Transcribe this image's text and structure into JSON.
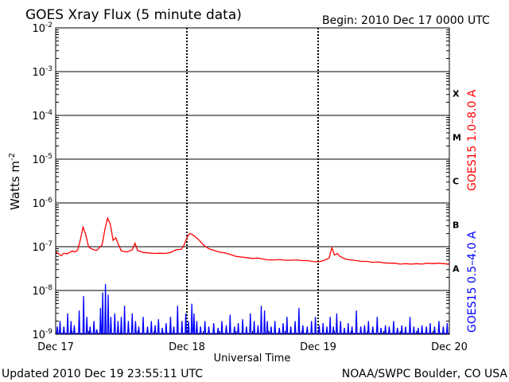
{
  "chart_data": {
    "type": "line",
    "title": "GOES Xray Flux (5 minute data)",
    "begin_label": "Begin:  2010 Dec 17 0000 UTC",
    "xlabel": "Universal Time",
    "ylabel_text": "Watts m",
    "ylabel_sup": "-2",
    "y_scale": "log",
    "ylim": [
      1e-09,
      0.01
    ],
    "y_ticks": [
      {
        "value": 1e-09,
        "base": "10",
        "exp": "-9"
      },
      {
        "value": 1e-08,
        "base": "10",
        "exp": "-8"
      },
      {
        "value": 1e-07,
        "base": "10",
        "exp": "-7"
      },
      {
        "value": 1e-06,
        "base": "10",
        "exp": "-6"
      },
      {
        "value": 1e-05,
        "base": "10",
        "exp": "-5"
      },
      {
        "value": 0.0001,
        "base": "10",
        "exp": "-4"
      },
      {
        "value": 0.001,
        "base": "10",
        "exp": "-3"
      },
      {
        "value": 0.01,
        "base": "10",
        "exp": "-2"
      }
    ],
    "xlim": [
      0,
      72
    ],
    "x_ticks": [
      {
        "hour": 0,
        "label": "Dec 17"
      },
      {
        "hour": 24,
        "label": "Dec 18"
      },
      {
        "hour": 48,
        "label": "Dec 19"
      },
      {
        "hour": 72,
        "label": "Dec 20"
      }
    ],
    "flare_classes": [
      {
        "label": "X",
        "value": 0.000316
      },
      {
        "label": "M",
        "value": 3.16e-05
      },
      {
        "label": "C",
        "value": 3.16e-06
      },
      {
        "label": "B",
        "value": 3.16e-07
      },
      {
        "label": "A",
        "value": 3.16e-08
      }
    ],
    "series": [
      {
        "name": "GOES15 1.0–8.0 A",
        "color": "#ff0000",
        "points": [
          [
            0.0,
            7.6e-08
          ],
          [
            0.5,
            7e-08
          ],
          [
            1.0,
            6.2e-08
          ],
          [
            1.5,
            7.1e-08
          ],
          [
            2.0,
            6.9e-08
          ],
          [
            2.5,
            7.3e-08
          ],
          [
            3.0,
            8e-08
          ],
          [
            3.5,
            7.6e-08
          ],
          [
            4.0,
            8.3e-08
          ],
          [
            4.5,
            1.4e-07
          ],
          [
            5.0,
            2.8e-07
          ],
          [
            5.5,
            1.9e-07
          ],
          [
            6.0,
            1e-07
          ],
          [
            6.5,
            9e-08
          ],
          [
            7.0,
            8.5e-08
          ],
          [
            7.5,
            8.2e-08
          ],
          [
            8.0,
            9.5e-08
          ],
          [
            8.5,
            1.1e-07
          ],
          [
            9.0,
            2.5e-07
          ],
          [
            9.5,
            4.5e-07
          ],
          [
            10.0,
            3.2e-07
          ],
          [
            10.5,
            1.4e-07
          ],
          [
            11.0,
            1.6e-07
          ],
          [
            11.5,
            1.1e-07
          ],
          [
            12.0,
            8e-08
          ],
          [
            13.0,
            7.6e-08
          ],
          [
            14.0,
            8.5e-08
          ],
          [
            14.5,
            1.2e-07
          ],
          [
            15.0,
            8.2e-08
          ],
          [
            16.0,
            7.4e-08
          ],
          [
            17.0,
            7.2e-08
          ],
          [
            18.0,
            7e-08
          ],
          [
            19.0,
            7.1e-08
          ],
          [
            20.0,
            7e-08
          ],
          [
            21.0,
            7.4e-08
          ],
          [
            22.0,
            8.5e-08
          ],
          [
            23.0,
            8.8e-08
          ],
          [
            23.5,
            1.1e-07
          ],
          [
            24.0,
            1.6e-07
          ],
          [
            24.5,
            2e-07
          ],
          [
            25.0,
            1.9e-07
          ],
          [
            25.5,
            1.7e-07
          ],
          [
            26.0,
            1.5e-07
          ],
          [
            26.5,
            1.3e-07
          ],
          [
            27.0,
            1.1e-07
          ],
          [
            28.0,
            9e-08
          ],
          [
            29.0,
            8.2e-08
          ],
          [
            30.0,
            7.5e-08
          ],
          [
            31.0,
            7.2e-08
          ],
          [
            32.0,
            6.6e-08
          ],
          [
            33.0,
            6e-08
          ],
          [
            34.0,
            5.8e-08
          ],
          [
            35.0,
            5.6e-08
          ],
          [
            36.0,
            5.4e-08
          ],
          [
            37.0,
            5.5e-08
          ],
          [
            38.0,
            5.2e-08
          ],
          [
            39.0,
            5e-08
          ],
          [
            40.0,
            5e-08
          ],
          [
            41.0,
            5.1e-08
          ],
          [
            42.0,
            4.9e-08
          ],
          [
            43.0,
            4.9e-08
          ],
          [
            44.0,
            5e-08
          ],
          [
            45.0,
            4.8e-08
          ],
          [
            46.0,
            4.8e-08
          ],
          [
            47.0,
            4.6e-08
          ],
          [
            48.0,
            4.5e-08
          ],
          [
            49.0,
            4.8e-08
          ],
          [
            50.0,
            5.5e-08
          ],
          [
            50.5,
            9.5e-08
          ],
          [
            51.0,
            6.5e-08
          ],
          [
            51.5,
            7e-08
          ],
          [
            52.0,
            6e-08
          ],
          [
            53.0,
            5.2e-08
          ],
          [
            54.0,
            5e-08
          ],
          [
            55.0,
            4.8e-08
          ],
          [
            56.0,
            4.6e-08
          ],
          [
            57.0,
            4.6e-08
          ],
          [
            58.0,
            4.4e-08
          ],
          [
            59.0,
            4.5e-08
          ],
          [
            60.0,
            4.3e-08
          ],
          [
            61.0,
            4.2e-08
          ],
          [
            62.0,
            4.2e-08
          ],
          [
            63.0,
            4e-08
          ],
          [
            64.0,
            4.1e-08
          ],
          [
            65.0,
            4e-08
          ],
          [
            66.0,
            4.1e-08
          ],
          [
            67.0,
            4e-08
          ],
          [
            68.0,
            4.2e-08
          ],
          [
            69.0,
            4.1e-08
          ],
          [
            70.0,
            4.2e-08
          ],
          [
            71.0,
            4.1e-08
          ],
          [
            72.0,
            4e-08
          ]
        ]
      },
      {
        "name": "GOES15 0.5–4.0 A",
        "color": "#0000ff",
        "baseline": 1e-09,
        "spikes": [
          [
            0.3,
            1.5e-09
          ],
          [
            0.8,
            2e-09
          ],
          [
            1.5,
            1.5e-09
          ],
          [
            2.2,
            3e-09
          ],
          [
            2.8,
            2e-09
          ],
          [
            3.4,
            1.6e-09
          ],
          [
            4.3,
            3.5e-09
          ],
          [
            5.1,
            7.5e-09
          ],
          [
            5.7,
            2.5e-09
          ],
          [
            6.3,
            1.5e-09
          ],
          [
            7.0,
            2e-09
          ],
          [
            7.5,
            1.3e-09
          ],
          [
            8.2,
            4e-09
          ],
          [
            8.6,
            9e-09
          ],
          [
            9.1,
            1.4e-08
          ],
          [
            9.6,
            8e-09
          ],
          [
            10.1,
            2.5e-09
          ],
          [
            10.8,
            3e-09
          ],
          [
            11.4,
            2e-09
          ],
          [
            12.0,
            2.5e-09
          ],
          [
            12.6,
            4.5e-09
          ],
          [
            13.3,
            2e-09
          ],
          [
            14.0,
            3e-09
          ],
          [
            14.6,
            2e-09
          ],
          [
            15.2,
            1.5e-09
          ],
          [
            16.0,
            2.5e-09
          ],
          [
            16.8,
            1.5e-09
          ],
          [
            17.5,
            2e-09
          ],
          [
            18.2,
            1.6e-09
          ],
          [
            18.8,
            2.2e-09
          ],
          [
            19.5,
            1.4e-09
          ],
          [
            20.2,
            1.8e-09
          ],
          [
            21.0,
            2.5e-09
          ],
          [
            21.6,
            1.5e-09
          ],
          [
            22.3,
            4.5e-09
          ],
          [
            23.1,
            2e-09
          ],
          [
            23.8,
            3e-09
          ],
          [
            24.3,
            2e-09
          ],
          [
            24.9,
            5e-09
          ],
          [
            25.3,
            3e-09
          ],
          [
            25.8,
            2e-09
          ],
          [
            26.5,
            1.5e-09
          ],
          [
            27.3,
            2e-09
          ],
          [
            28.0,
            1.5e-09
          ],
          [
            28.9,
            1.8e-09
          ],
          [
            29.7,
            1.4e-09
          ],
          [
            30.4,
            2e-09
          ],
          [
            31.2,
            1.6e-09
          ],
          [
            31.9,
            2.8e-09
          ],
          [
            32.7,
            1.5e-09
          ],
          [
            33.4,
            1.8e-09
          ],
          [
            34.2,
            2.2e-09
          ],
          [
            34.9,
            1.5e-09
          ],
          [
            35.6,
            3e-09
          ],
          [
            36.3,
            2e-09
          ],
          [
            37.0,
            1.6e-09
          ],
          [
            37.6,
            4.5e-09
          ],
          [
            38.2,
            3.5e-09
          ],
          [
            38.7,
            2e-09
          ],
          [
            39.4,
            1.5e-09
          ],
          [
            40.1,
            2e-09
          ],
          [
            40.9,
            1.4e-09
          ],
          [
            41.6,
            1.8e-09
          ],
          [
            42.3,
            2.5e-09
          ],
          [
            43.0,
            1.5e-09
          ],
          [
            43.8,
            2e-09
          ],
          [
            44.5,
            4e-09
          ],
          [
            45.2,
            1.6e-09
          ],
          [
            46.0,
            1.5e-09
          ],
          [
            46.8,
            2e-09
          ],
          [
            47.5,
            2.5e-09
          ],
          [
            48.2,
            1.6e-09
          ],
          [
            48.9,
            1.8e-09
          ],
          [
            49.6,
            1.5e-09
          ],
          [
            50.2,
            2.5e-09
          ],
          [
            50.8,
            1.5e-09
          ],
          [
            51.4,
            3e-09
          ],
          [
            52.1,
            2e-09
          ],
          [
            52.8,
            1.4e-09
          ],
          [
            53.5,
            1.8e-09
          ],
          [
            54.2,
            1.5e-09
          ],
          [
            55.0,
            3.5e-09
          ],
          [
            55.8,
            1.5e-09
          ],
          [
            56.5,
            1.6e-09
          ],
          [
            57.2,
            2e-09
          ],
          [
            58.0,
            1.5e-09
          ],
          [
            58.8,
            2.5e-09
          ],
          [
            59.5,
            1.4e-09
          ],
          [
            60.3,
            1.6e-09
          ],
          [
            61.0,
            1.5e-09
          ],
          [
            61.8,
            2e-09
          ],
          [
            62.5,
            1.4e-09
          ],
          [
            63.3,
            1.6e-09
          ],
          [
            64.0,
            1.5e-09
          ],
          [
            64.8,
            2.5e-09
          ],
          [
            65.5,
            1.5e-09
          ],
          [
            66.3,
            1.4e-09
          ],
          [
            67.0,
            1.6e-09
          ],
          [
            67.8,
            1.5e-09
          ],
          [
            68.5,
            1.8e-09
          ],
          [
            69.3,
            1.5e-09
          ],
          [
            70.1,
            2e-09
          ],
          [
            70.9,
            1.5e-09
          ],
          [
            71.6,
            1.8e-09
          ]
        ]
      }
    ]
  },
  "footer": {
    "updated": "Updated 2010 Dec 19 23:55:11 UTC",
    "credit": "NOAA/SWPC Boulder, CO USA"
  }
}
